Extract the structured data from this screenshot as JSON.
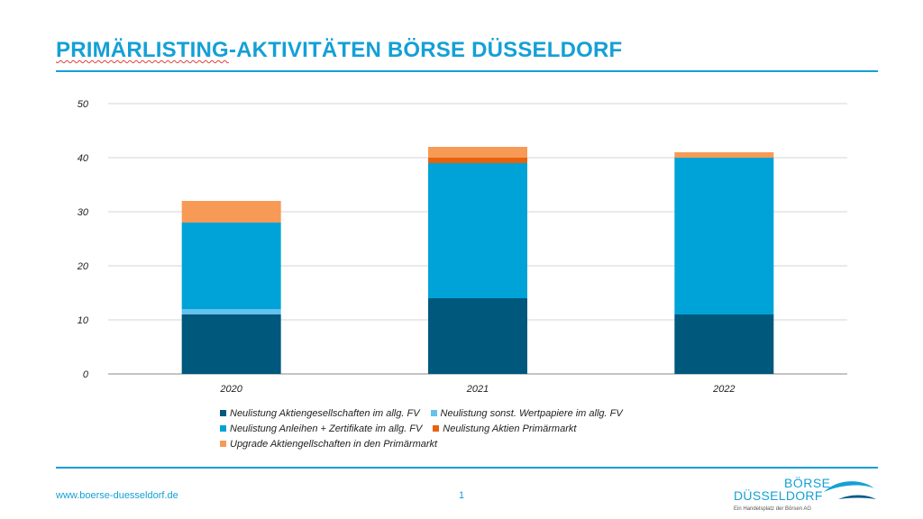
{
  "title": {
    "part1": "PRIMÄRLISTING",
    "part2": "-AKTIVITÄTEN BÖRSE DÜSSELDORF"
  },
  "footer": {
    "url": "www.boerse-duesseldorf.de",
    "page": "1"
  },
  "logo": {
    "line1": "BÖRSE",
    "line2": "DÜSSELDORF",
    "tagline": "Ein Handelsplatz der Börsen AG"
  },
  "colors": {
    "accent": "#14a0d6"
  },
  "chart_data": {
    "type": "bar",
    "stacked": true,
    "categories": [
      "2020",
      "2021",
      "2022"
    ],
    "ylim": [
      0,
      50
    ],
    "yticks": [
      0,
      10,
      20,
      30,
      40,
      50
    ],
    "grid": true,
    "legend_position": "bottom",
    "series": [
      {
        "name": "Neulistung Aktiengesellschaften im allg. FV",
        "color": "#00587c",
        "values": [
          11,
          14,
          11
        ]
      },
      {
        "name": "Neulistung sonst. Wertpapiere im allg. FV",
        "color": "#63c2ee",
        "values": [
          1,
          0,
          0
        ]
      },
      {
        "name": "Neulistung Anleihen + Zertifikate im allg. FV",
        "color": "#00a3d7",
        "values": [
          16,
          25,
          29
        ]
      },
      {
        "name": "Neulistung Aktien Primärmarkt",
        "color": "#e8620c",
        "values": [
          0,
          1,
          0
        ]
      },
      {
        "name": "Upgrade Aktiengellschaften in den Primärmarkt",
        "color": "#f79a56",
        "values": [
          4,
          2,
          1
        ]
      }
    ]
  }
}
